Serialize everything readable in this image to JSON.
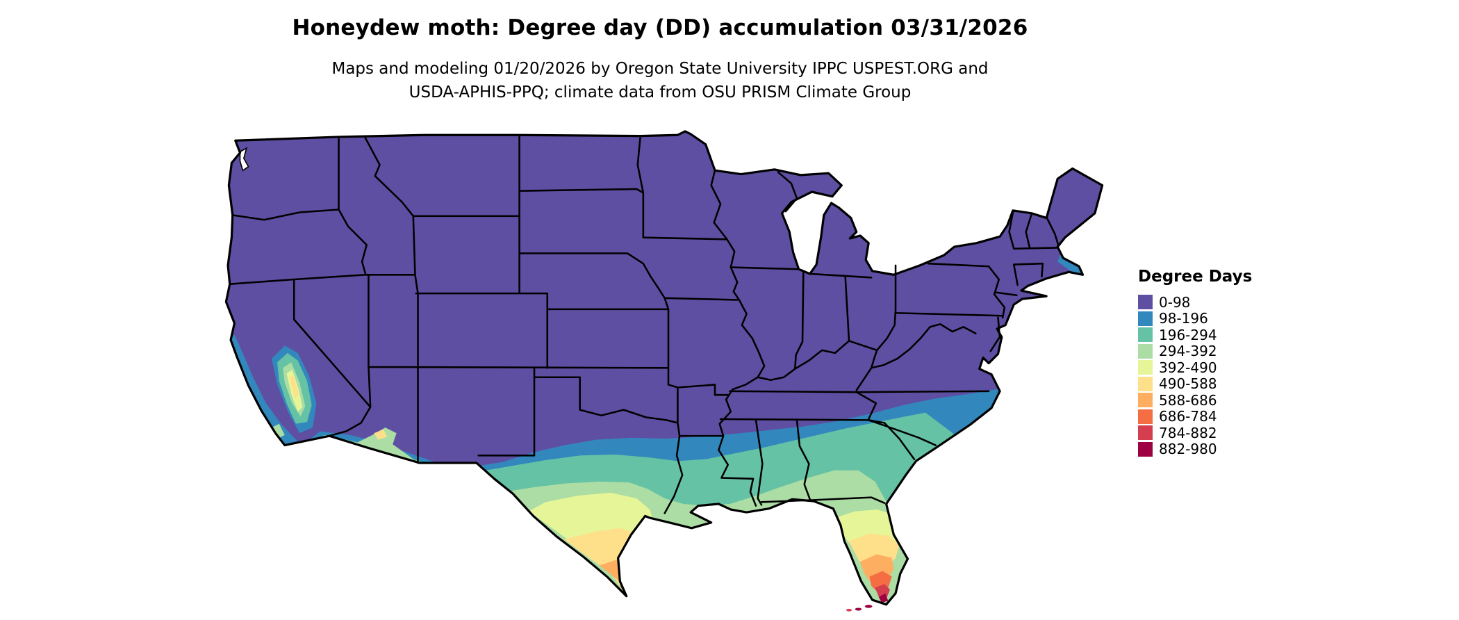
{
  "header": {
    "title": "Honeydew moth: Degree day (DD) accumulation 03/31/2026",
    "subtitle_line1": "Maps and modeling 01/20/2026 by Oregon State University IPPC USPEST.ORG and",
    "subtitle_line2": "USDA-APHIS-PPQ; climate data from OSU PRISM Climate Group"
  },
  "map": {
    "description": "Contiguous United States choropleth of honeydew moth degree-day accumulation",
    "base_color": "#5e4fa2",
    "ocean_color": "#ffffff",
    "border_color": "#000000"
  },
  "legend": {
    "title": "Degree Days",
    "classes": [
      {
        "label": "0-98",
        "color": "#5e4fa2"
      },
      {
        "label": "98-196",
        "color": "#3288bd"
      },
      {
        "label": "196-294",
        "color": "#66c2a5"
      },
      {
        "label": "294-392",
        "color": "#abdda4"
      },
      {
        "label": "392-490",
        "color": "#e6f598"
      },
      {
        "label": "490-588",
        "color": "#fee08b"
      },
      {
        "label": "588-686",
        "color": "#fdae61"
      },
      {
        "label": "686-784",
        "color": "#f46d43"
      },
      {
        "label": "784-882",
        "color": "#d53e4f"
      },
      {
        "label": "882-980",
        "color": "#9e0142"
      }
    ]
  }
}
